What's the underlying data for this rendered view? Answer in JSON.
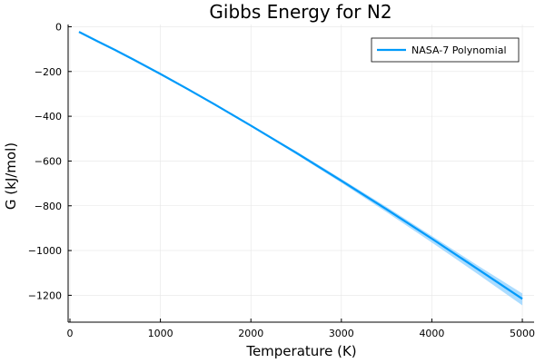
{
  "chart_data": {
    "type": "line",
    "title": "Gibbs Energy for N2",
    "xlabel": "Temperature (K)",
    "ylabel": "G (kJ/mol)",
    "xlim": [
      -20,
      5130
    ],
    "ylim": [
      -1320,
      10
    ],
    "x_ticks": [
      0,
      1000,
      2000,
      3000,
      4000,
      5000
    ],
    "x_tick_labels": [
      "0",
      "1000",
      "2000",
      "3000",
      "4000",
      "5000"
    ],
    "y_ticks": [
      0,
      -200,
      -400,
      -600,
      -800,
      -1000,
      -1200
    ],
    "y_tick_labels": [
      "0",
      "−200",
      "−400",
      "−600",
      "−800",
      "−1000",
      "−1200"
    ],
    "grid": true,
    "legend_position": "top-right",
    "series": [
      {
        "name": "NASA-7 Polynomial",
        "color": "#009AFA",
        "band_color": "#8fd0ff",
        "x": [
          100,
          300,
          500,
          700,
          1000,
          1300,
          1600,
          2000,
          2500,
          3000,
          3500,
          4000,
          4500,
          5000
        ],
        "y": [
          -23,
          -64,
          -104,
          -146,
          -211,
          -278,
          -347,
          -442,
          -563,
          -688,
          -816,
          -947,
          -1081,
          -1216
        ]
      }
    ],
    "uncertainty_band": {
      "x": [
        100,
        1000,
        2000,
        2500,
        3000,
        3500,
        4000,
        4500,
        5000
      ],
      "lower": [
        -23,
        -211,
        -445,
        -570,
        -697,
        -829,
        -964,
        -1103,
        -1245
      ],
      "upper": [
        -23,
        -211,
        -440,
        -556,
        -680,
        -805,
        -935,
        -1065,
        -1192
      ]
    }
  }
}
